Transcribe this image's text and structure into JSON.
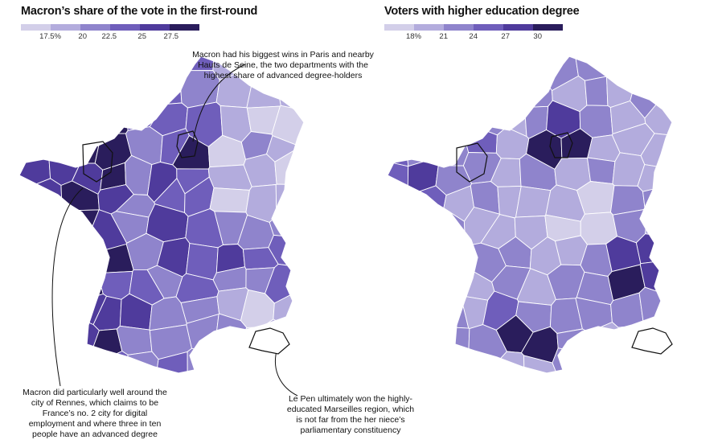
{
  "left_map": {
    "title": "Macron’s share of the vote in the first-round",
    "legend_labels": [
      "17.5%",
      "20",
      "22.5",
      "25",
      "27.5"
    ],
    "colors": [
      "#d3cfe9",
      "#b3acdd",
      "#8f84cc",
      "#6f5ebb",
      "#4f3b9c",
      "#2a1d5c"
    ]
  },
  "right_map": {
    "title": "Voters with higher education degree",
    "legend_labels": [
      "18%",
      "21",
      "24",
      "27",
      "30"
    ],
    "colors": [
      "#d3cfe9",
      "#b3acdd",
      "#8f84cc",
      "#6f5ebb",
      "#4f3b9c",
      "#2a1d5c"
    ]
  },
  "annotations": {
    "paris": "Macron had his biggest wins in Paris and nearby Hauts de Seine, the two departments with the highest share of advanced degree-holders",
    "rennes": "Macron did particularly well around the city of Rennes, which claims to be France’s no. 2 city for digital employment and where three in ten people have an advanced degree",
    "marseille": "Le Pen ultimately won the highly-educated Marseilles region, which is not far from the her niece’s parliamentary constituency"
  }
}
